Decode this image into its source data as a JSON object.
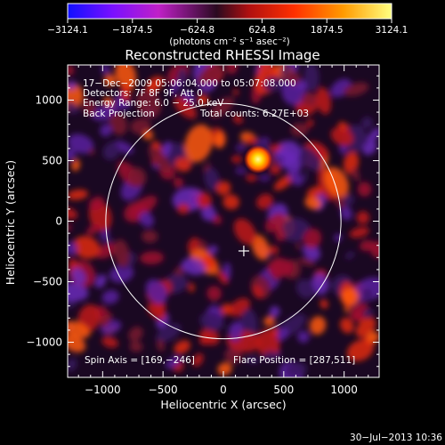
{
  "colorbar": {
    "tick_labels": [
      "−3124.1",
      "−1874.5",
      "−624.8",
      "624.8",
      "1874.5",
      "3124.1"
    ],
    "units_label": "(photons cm⁻² s⁻¹ asec⁻²)",
    "range": [
      -3124.1,
      3124.1
    ],
    "colors": [
      "#1010ff",
      "#7a10ff",
      "#c020c8",
      "#2a0a20",
      "#b01010",
      "#ff3000",
      "#ff9a00",
      "#ffff80"
    ]
  },
  "chart_data": {
    "type": "heatmap",
    "title": "Reconstructed RHESSI Image",
    "xlabel": "Heliocentric X (arcsec)",
    "ylabel": "Heliocentric Y (arcsec)",
    "xlim": [
      -1290,
      1290
    ],
    "ylim": [
      -1290,
      1290
    ],
    "x_ticks": [
      -1000,
      -500,
      0,
      500,
      1000
    ],
    "y_ticks": [
      1000,
      500,
      0,
      -500,
      -1000
    ],
    "x_tick_labels": [
      "−1000",
      "−500",
      "0",
      "500",
      "1000"
    ],
    "y_tick_labels": [
      "1000",
      "500",
      "0",
      "−500",
      "−1000"
    ],
    "annotations": [
      "17−Dec−2009 05:06:04.000 to 05:07:08.000",
      "Detectors: 7F 8F 9F, Att 0",
      "Energy Range: 6.0 − 25.0 keV",
      "Back Projection",
      "Total counts: 6.27E+03"
    ],
    "spin_axis_label": "Spin Axis = [169,−246]",
    "flare_position_label": "Flare Position = [287,511]",
    "spin_axis": [
      169,
      -246
    ],
    "flare_position": [
      287,
      511
    ],
    "solar_limb_radius": 974,
    "peak_value": 3124.1
  },
  "footer": {
    "timestamp": "30−Jul−2013 10:36"
  }
}
